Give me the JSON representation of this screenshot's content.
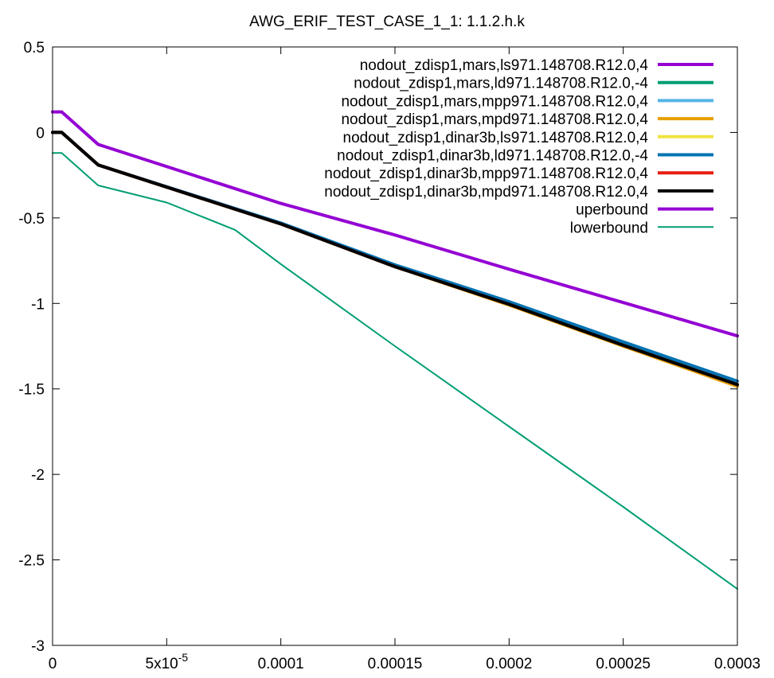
{
  "chart_data": {
    "type": "line",
    "title": "AWG_ERIF_TEST_CASE_1_1: 1.1.2.h.k",
    "xlabel": "",
    "ylabel": "",
    "xlim": [
      0,
      0.0003
    ],
    "ylim": [
      -3,
      0.5
    ],
    "xticks": [
      {
        "value": 0,
        "label": "0"
      },
      {
        "value": 5e-05,
        "label": "5x10",
        "sup": "-5"
      },
      {
        "value": 0.0001,
        "label": "0.0001"
      },
      {
        "value": 0.00015,
        "label": "0.00015"
      },
      {
        "value": 0.0002,
        "label": "0.0002"
      },
      {
        "value": 0.00025,
        "label": "0.00025"
      },
      {
        "value": 0.0003,
        "label": "0.0003"
      }
    ],
    "yticks": [
      {
        "value": 0.5,
        "label": "0.5"
      },
      {
        "value": 0,
        "label": "0"
      },
      {
        "value": -0.5,
        "label": "-0.5"
      },
      {
        "value": -1,
        "label": "-1"
      },
      {
        "value": -1.5,
        "label": "-1.5"
      },
      {
        "value": -2,
        "label": "-2"
      },
      {
        "value": -2.5,
        "label": "-2.5"
      },
      {
        "value": -3,
        "label": "-3"
      }
    ],
    "grid": false,
    "legend": "top-right",
    "series": [
      {
        "name": "nodout_zdisp1,mars,ls971.148708.R12.0,4",
        "color": "#9400d3",
        "thick": true,
        "x": [
          0,
          4e-06,
          2e-05,
          0.0001,
          0.00015,
          0.0002,
          0.00025,
          0.0003
        ],
        "y": [
          0,
          0,
          -0.19,
          -0.535,
          -0.785,
          -1.005,
          -1.245,
          -1.475
        ]
      },
      {
        "name": "nodout_zdisp1,mars,ld971.148708.R12.0,-4",
        "color": "#009e73",
        "thick": true,
        "x": [
          0,
          4e-06,
          2e-05,
          0.0001,
          0.00015,
          0.0002,
          0.00025,
          0.0003
        ],
        "y": [
          0,
          0,
          -0.19,
          -0.535,
          -0.785,
          -1.005,
          -1.245,
          -1.475
        ]
      },
      {
        "name": "nodout_zdisp1,mars,mpp971.148708.R12.0,4",
        "color": "#56b4e9",
        "thick": true,
        "x": [
          0,
          4e-06,
          2e-05,
          0.0001,
          0.00015,
          0.0002,
          0.00025,
          0.0003
        ],
        "y": [
          0,
          0,
          -0.19,
          -0.535,
          -0.785,
          -1.005,
          -1.245,
          -1.475
        ]
      },
      {
        "name": "nodout_zdisp1,mars,mpd971.148708.R12.0,4",
        "color": "#e69f00",
        "thick": true,
        "x": [
          0,
          4e-06,
          2e-05,
          0.0001,
          0.00015,
          0.0002,
          0.00025,
          0.0003
        ],
        "y": [
          0,
          0,
          -0.19,
          -0.535,
          -0.785,
          -1.01,
          -1.25,
          -1.485
        ]
      },
      {
        "name": "nodout_zdisp1,dinar3b,ls971.148708.R12.0,4",
        "color": "#f0e442",
        "thick": true,
        "x": [
          0,
          4e-06,
          2e-05,
          0.0001,
          0.00015,
          0.0002,
          0.00025,
          0.0003
        ],
        "y": [
          0,
          0,
          -0.19,
          -0.535,
          -0.785,
          -1.005,
          -1.245,
          -1.475
        ]
      },
      {
        "name": "nodout_zdisp1,dinar3b,ld971.148708.R12.0,-4",
        "color": "#0072b2",
        "thick": true,
        "x": [
          0,
          4e-06,
          2e-05,
          0.0001,
          0.00015,
          0.0002,
          0.00025,
          0.0003
        ],
        "y": [
          0,
          0,
          -0.19,
          -0.53,
          -0.775,
          -0.99,
          -1.225,
          -1.455
        ]
      },
      {
        "name": "nodout_zdisp1,dinar3b,mpp971.148708.R12.0,4",
        "color": "#e51e10",
        "thick": true,
        "x": [
          0,
          4e-06,
          2e-05,
          0.0001,
          0.00015,
          0.0002,
          0.00025,
          0.0003
        ],
        "y": [
          0,
          0,
          -0.19,
          -0.535,
          -0.785,
          -1.005,
          -1.245,
          -1.475
        ]
      },
      {
        "name": "nodout_zdisp1,dinar3b,mpd971.148708.R12.0,4",
        "color": "#000000",
        "thick": true,
        "x": [
          0,
          4e-06,
          2e-05,
          0.0001,
          0.00015,
          0.0002,
          0.00025,
          0.0003
        ],
        "y": [
          0,
          0,
          -0.19,
          -0.535,
          -0.785,
          -1.005,
          -1.245,
          -1.475
        ]
      },
      {
        "name": "uperbound",
        "color": "#9400d3",
        "thick": true,
        "x": [
          0,
          4e-06,
          2e-05,
          0.0001,
          0.00015,
          0.0002,
          0.00025,
          0.0003
        ],
        "y": [
          0.12,
          0.12,
          -0.07,
          -0.415,
          -0.6,
          -0.8,
          -0.995,
          -1.19
        ]
      },
      {
        "name": "lowerbound",
        "color": "#009e73",
        "thick": false,
        "x": [
          0,
          4e-06,
          2e-05,
          5e-05,
          8e-05,
          0.0001,
          0.00015,
          0.0002,
          0.00025,
          0.0003
        ],
        "y": [
          -0.12,
          -0.12,
          -0.31,
          -0.41,
          -0.57,
          -0.77,
          -1.25,
          -1.72,
          -2.19,
          -2.67
        ]
      }
    ]
  }
}
